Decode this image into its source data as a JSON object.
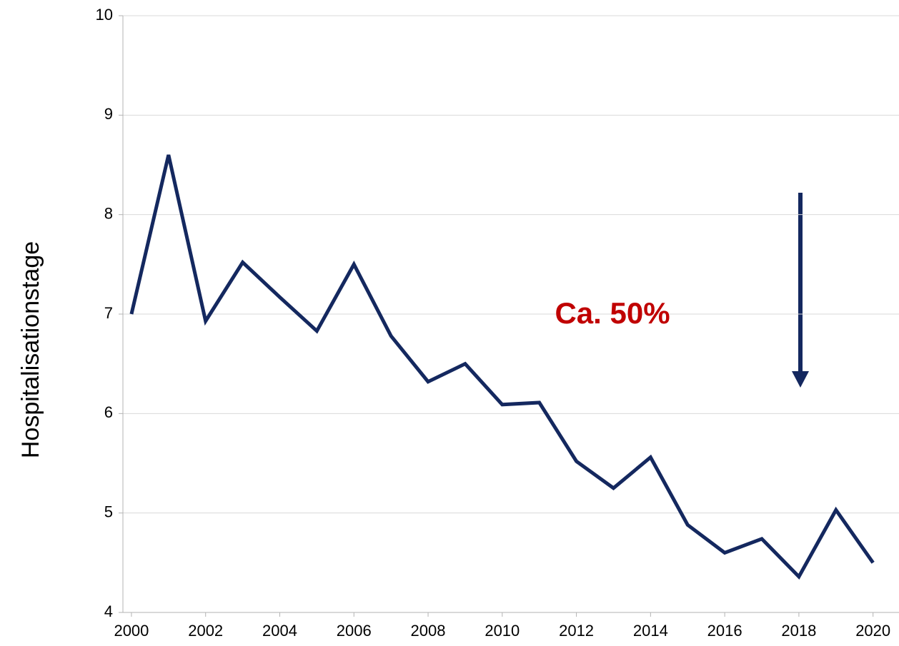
{
  "chart_data": {
    "type": "line",
    "y_label": "Hospitalisationstage",
    "annotation": "Ca. 50%",
    "x": [
      2000,
      2001,
      2002,
      2003,
      2004,
      2005,
      2006,
      2007,
      2008,
      2009,
      2010,
      2011,
      2012,
      2013,
      2014,
      2015,
      2016,
      2017,
      2018,
      2019,
      2020
    ],
    "series": [
      {
        "color": "#14285f",
        "values": [
          7.0,
          8.6,
          6.93,
          7.52,
          7.17,
          6.83,
          7.5,
          6.78,
          6.32,
          6.5,
          6.09,
          6.11,
          5.52,
          5.25,
          5.56,
          4.88,
          4.6,
          4.74,
          4.36,
          5.03,
          4.5
        ]
      }
    ],
    "xlim": [
      1999.77,
      2020.7
    ],
    "xticks": [
      2000,
      2002,
      2004,
      2006,
      2008,
      2010,
      2012,
      2014,
      2016,
      2018,
      2020
    ],
    "ylim": [
      4,
      10
    ],
    "yticks": [
      4,
      5,
      6,
      7,
      8,
      9,
      10
    ],
    "grid": true,
    "annotation_color": "#c00000"
  }
}
